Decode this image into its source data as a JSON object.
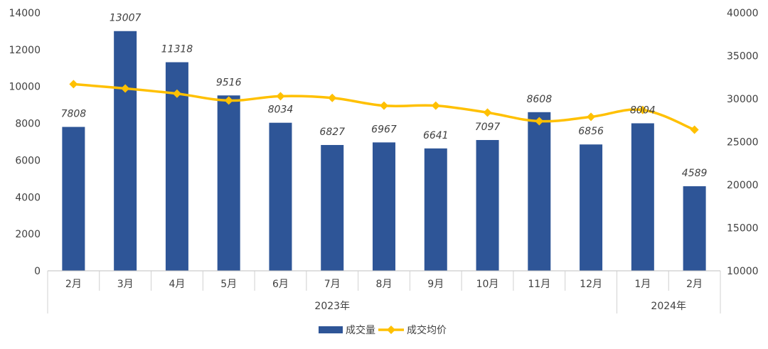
{
  "chart_data": {
    "type": "bar",
    "categories": [
      "2月",
      "3月",
      "4月",
      "5月",
      "6月",
      "7月",
      "8月",
      "9月",
      "10月",
      "11月",
      "12月",
      "1月",
      "2月"
    ],
    "groups": [
      {
        "label": "2023年",
        "count": 11
      },
      {
        "label": "2024年",
        "count": 2
      }
    ],
    "series": [
      {
        "name": "成交量",
        "type": "bar",
        "axis": "left",
        "color": "#2E5597",
        "values": [
          7808,
          13007,
          11318,
          9516,
          8034,
          6827,
          6967,
          6641,
          7097,
          8608,
          6856,
          8004,
          4589
        ],
        "data_labels": [
          "7808",
          "13007",
          "11318",
          "9516",
          "8034",
          "6827",
          "6967",
          "6641",
          "7097",
          "8608",
          "6856",
          "8004",
          "4589"
        ]
      },
      {
        "name": "成交均价",
        "type": "line",
        "axis": "right",
        "color": "#FFC000",
        "values": [
          31700,
          31200,
          30600,
          29800,
          30300,
          30100,
          29200,
          29200,
          28400,
          27400,
          27900,
          28700,
          26400
        ]
      }
    ],
    "ylim_left": [
      0,
      14000
    ],
    "yticks_left": [
      "0",
      "2000",
      "4000",
      "6000",
      "8000",
      "10000",
      "12000",
      "14000"
    ],
    "ylim_right": [
      10000,
      40000
    ],
    "yticks_right": [
      "10000",
      "15000",
      "20000",
      "25000",
      "30000",
      "35000",
      "40000"
    ],
    "grid": false,
    "legend_position": "bottom"
  }
}
